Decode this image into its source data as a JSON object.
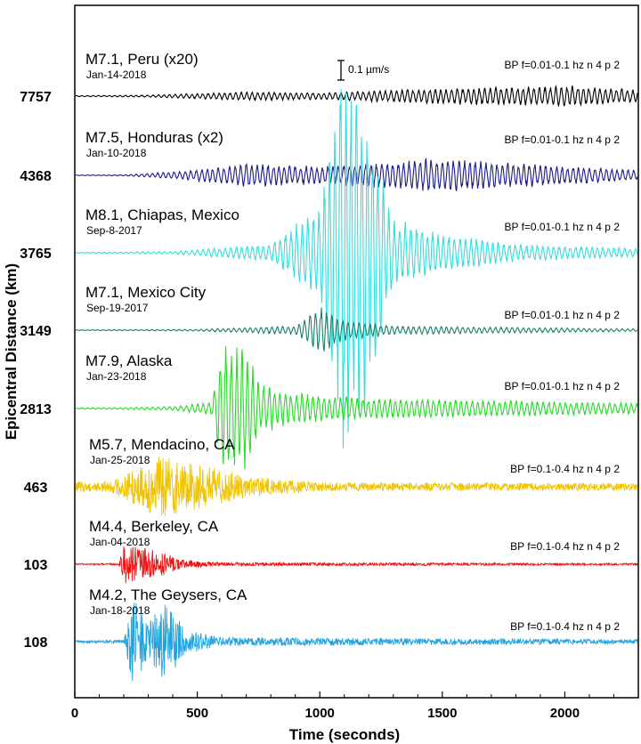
{
  "chart_data": {
    "type": "line",
    "xlabel": "Time (seconds)",
    "ylabel": "Epicentral Distance (km)",
    "xlim": [
      0,
      2300
    ],
    "xticks": [
      0,
      500,
      1000,
      1500,
      2000
    ],
    "xtick_labels": [
      "0",
      "500",
      "1000",
      "1500",
      "2000"
    ],
    "scale_bar": "0.1 µm/s",
    "series": [
      {
        "name": "M7.1, Peru (x20)",
        "date": "Jan-14-2018",
        "distance": "7757",
        "filter": "BP f=0.01-0.1 hz n 4 p 2",
        "color": "#000000",
        "wave": "long",
        "envelope": [
          [
            0,
            0.6
          ],
          [
            300,
            1.2
          ],
          [
            700,
            5
          ],
          [
            1000,
            4
          ],
          [
            1500,
            9
          ],
          [
            2000,
            12
          ],
          [
            2300,
            8
          ]
        ]
      },
      {
        "name": "M7.5, Honduras (x2)",
        "date": "Jan-10-2018",
        "distance": "4368",
        "filter": "BP f=0.01-0.1 hz n 4 p 2",
        "color": "#1a1a8c",
        "wave": "long",
        "envelope": [
          [
            0,
            0.3
          ],
          [
            200,
            0.5
          ],
          [
            450,
            5
          ],
          [
            700,
            14
          ],
          [
            1000,
            10
          ],
          [
            1500,
            20
          ],
          [
            1800,
            14
          ],
          [
            2300,
            6
          ]
        ]
      },
      {
        "name": "M8.1, Chiapas, Mexico",
        "date": "Sep-8-2017",
        "distance": "3765",
        "filter": "BP f=0.01-0.1 hz n 4 p 2",
        "color": "#33dddd",
        "wave": "long",
        "envelope": [
          [
            0,
            0.3
          ],
          [
            400,
            1.5
          ],
          [
            800,
            10
          ],
          [
            1000,
            55
          ],
          [
            1100,
            250
          ],
          [
            1200,
            160
          ],
          [
            1300,
            40
          ],
          [
            1500,
            22
          ],
          [
            1800,
            10
          ],
          [
            2300,
            5
          ]
        ]
      },
      {
        "name": "M7.1, Mexico City",
        "date": "Sep-19-2017",
        "distance": "3149",
        "filter": "BP f=0.01-0.1 hz n 4 p 2",
        "color": "#1a7f6a",
        "wave": "long",
        "envelope": [
          [
            0,
            0.3
          ],
          [
            500,
            1
          ],
          [
            900,
            5
          ],
          [
            1000,
            28
          ],
          [
            1100,
            12
          ],
          [
            1300,
            5
          ],
          [
            2300,
            1.5
          ]
        ]
      },
      {
        "name": "M7.9, Alaska",
        "date": "Jan-23-2018",
        "distance": "2813",
        "filter": "BP f=0.01-0.1 hz n 4 p 2",
        "color": "#22dd22",
        "wave": "long",
        "envelope": [
          [
            0,
            0.4
          ],
          [
            400,
            2
          ],
          [
            560,
            8
          ],
          [
            600,
            78
          ],
          [
            700,
            70
          ],
          [
            750,
            30
          ],
          [
            900,
            18
          ],
          [
            1200,
            12
          ],
          [
            1800,
            9
          ],
          [
            2300,
            6
          ]
        ]
      },
      {
        "name": "M5.7, Mendacino, CA",
        "date": "Jan-25-2018",
        "distance": "463",
        "filter": "BP f=0.1-0.4 hz n 4 p 2",
        "color": "#f0c400",
        "wave": "short",
        "envelope": [
          [
            0,
            6
          ],
          [
            150,
            6
          ],
          [
            220,
            18
          ],
          [
            350,
            35
          ],
          [
            500,
            26
          ],
          [
            700,
            12
          ],
          [
            1000,
            5
          ],
          [
            2300,
            4
          ]
        ]
      },
      {
        "name": "M4.4, Berkeley, CA",
        "date": "Jan-04-2018",
        "distance": "103",
        "filter": "BP f=0.1-0.4 hz n 4 p 2",
        "color": "#ee1111",
        "wave": "short",
        "envelope": [
          [
            0,
            0.8
          ],
          [
            180,
            1
          ],
          [
            200,
            22
          ],
          [
            300,
            18
          ],
          [
            450,
            5
          ],
          [
            600,
            2
          ],
          [
            2300,
            1
          ]
        ]
      },
      {
        "name": "M4.2, The Geysers, CA",
        "date": "Jan-18-2018",
        "distance": "108",
        "filter": "BP f=0.1-0.4 hz n 4 p 2",
        "color": "#22a3dd",
        "wave": "short",
        "envelope": [
          [
            0,
            1.5
          ],
          [
            200,
            2
          ],
          [
            240,
            52
          ],
          [
            300,
            22
          ],
          [
            370,
            46
          ],
          [
            450,
            14
          ],
          [
            600,
            5
          ],
          [
            2300,
            2.5
          ]
        ]
      }
    ]
  }
}
